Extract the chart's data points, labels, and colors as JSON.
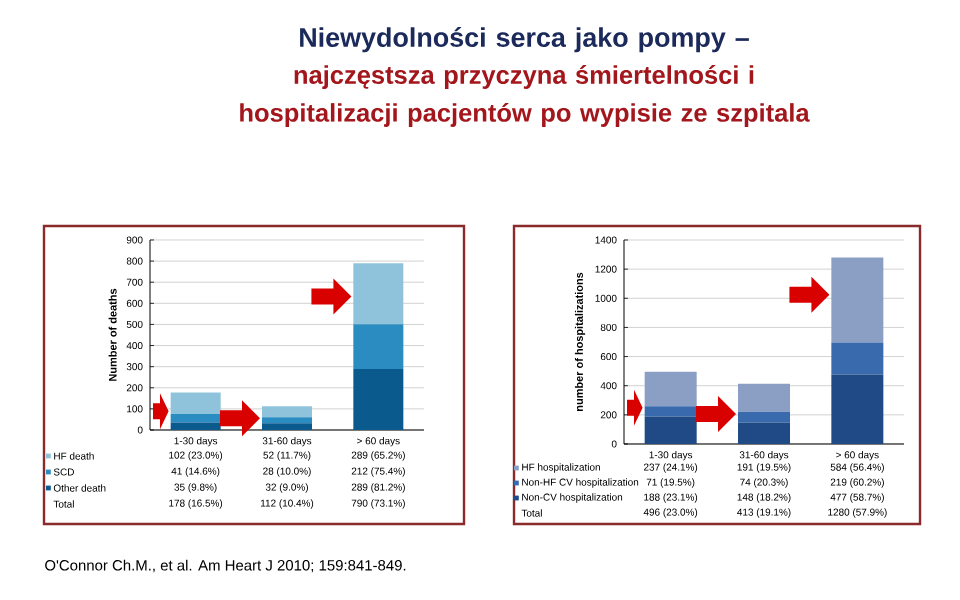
{
  "chart_data": [
    {
      "type": "bar",
      "stacked": true,
      "title": "Niewydolności serca jako pompy –",
      "subtitle": "najczęstsza przyczyna śmiertelności i hospitalizacji pacjentów po wypisie ze szpitala",
      "ylabel": "Number of deaths",
      "categories": [
        "1-30 days",
        "31-60 days",
        "> 60 days"
      ],
      "series": [
        {
          "name": "Other death",
          "color": "#0a5a8e",
          "values": [
            35,
            32,
            289
          ],
          "value_labels": [
            "35 (9.8%)",
            "32 (9.0%)",
            "289 (81.2%)"
          ]
        },
        {
          "name": "SCD",
          "color": "#2a8cc0",
          "values": [
            41,
            28,
            212
          ],
          "value_labels": [
            "41 (14.6%)",
            "28 (10.0%)",
            "212 (75.4%)"
          ]
        },
        {
          "name": "HF death",
          "color": "#8fc3dc",
          "values": [
            102,
            52,
            289
          ],
          "value_labels": [
            "102 (23.0%)",
            "52 (11.7%)",
            "289 (65.2%)"
          ]
        }
      ],
      "ylim": [
        0,
        900
      ],
      "yticks": [
        0,
        100,
        200,
        300,
        400,
        500,
        600,
        700,
        800,
        900
      ],
      "grid": "y",
      "legend": "bottom",
      "annotations": [
        "Total",
        "178 (16.5%)",
        "112 (10.4%)",
        "790 (73.1%)",
        "O'Connor Ch.M., et al. Am Heart J 2010; 159:841-849."
      ]
    },
    {
      "type": "bar",
      "stacked": true,
      "ylabel": "number of hospitalizations",
      "categories": [
        "1-30 days",
        "31-60 days",
        "> 60 days"
      ],
      "series": [
        {
          "name": "Non-CV hospitalization",
          "color": "#1f4a85",
          "values": [
            188,
            148,
            477
          ],
          "value_labels": [
            "188 (23.1%)",
            "148 (18.2%)",
            "477 (58.7%)"
          ]
        },
        {
          "name": "Non-HF CV hospitalization",
          "color": "#3a6aae",
          "values": [
            71,
            74,
            219
          ],
          "value_labels": [
            "71 (19.5%)",
            "74 (20.3%)",
            "219 (60.2%)"
          ]
        },
        {
          "name": "HF hospitalization",
          "color": "#8b9fc4",
          "values": [
            237,
            191,
            584
          ],
          "value_labels": [
            "237 (24.1%)",
            "191 (19.5%)",
            "584 (56.4%)"
          ]
        }
      ],
      "ylim": [
        0,
        1400
      ],
      "yticks": [
        0,
        200,
        400,
        600,
        800,
        1000,
        1200,
        1400
      ],
      "grid": "y",
      "legend": "bottom",
      "annotations": [
        "Total",
        "496 (23.0%)",
        "413 (19.1%)",
        "1280 (57.9%)"
      ]
    }
  ]
}
